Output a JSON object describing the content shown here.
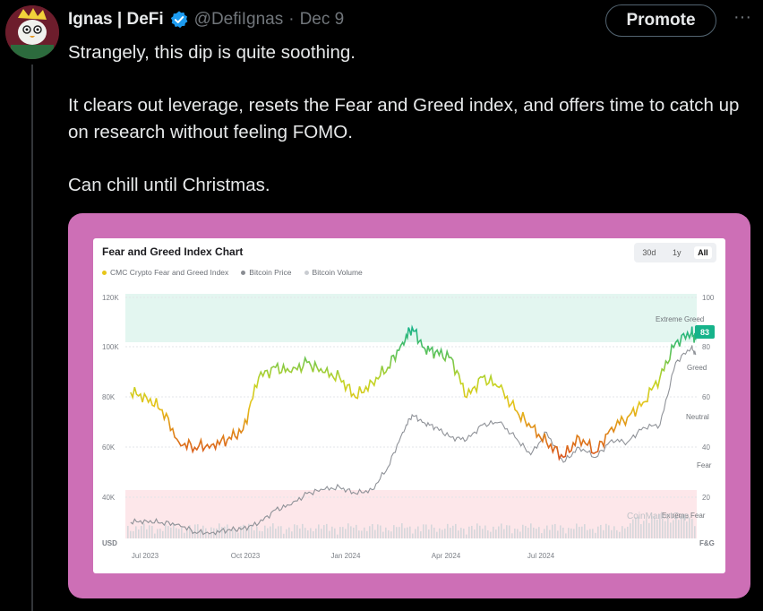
{
  "tweet": {
    "author_name": "Ignas | DeFi",
    "handle": "@DefiIgnas",
    "separator": "·",
    "date": "Dec 9",
    "promote_label": "Promote",
    "more_label": "···",
    "paragraphs": [
      "Strangely, this dip is quite soothing.",
      "It clears out leverage, resets the Fear and Greed index, and offers time to catch up on research without feeling FOMO.",
      "Can chill until Christmas."
    ]
  },
  "colors": {
    "background": "#000000",
    "text": "#e7e9ea",
    "muted": "#71767b",
    "verified": "#1d9bf0",
    "media_frame": "#cd6fb6"
  },
  "icons": {
    "avatar": "avatar-icon",
    "verified": "verified-badge-icon",
    "more": "more-icon"
  },
  "chart_card": {
    "title": "Fear and Greed Index Chart",
    "ranges": [
      "30d",
      "1y",
      "All"
    ],
    "active_range": "All",
    "legend": [
      {
        "label": "CMC Crypto Fear and Greed Index",
        "color": "#e7c619"
      },
      {
        "label": "Bitcoin Price",
        "color": "#8a8d93"
      },
      {
        "label": "Bitcoin Volume",
        "color": "#c9ccd1"
      }
    ],
    "watermark": "CoinMarketCap"
  },
  "chart_data": {
    "type": "line",
    "title": "Fear and Greed Index Chart",
    "x_ticks": [
      "Jul 2023",
      "Oct 2023",
      "Jan 2024",
      "Apr 2024",
      "Jul 2024"
    ],
    "left_axis": {
      "label": "USD",
      "ticks": [
        "120K",
        "100K",
        "80K",
        "60K",
        "40K"
      ],
      "range": [
        30000,
        120000
      ]
    },
    "right_axis": {
      "label": "F&G",
      "ticks": [
        "100",
        "80",
        "60",
        "40",
        "20"
      ],
      "range": [
        0,
        100
      ]
    },
    "zones": [
      "Extreme Greed",
      "Greed",
      "Neutral",
      "Fear",
      "Extreme Fear"
    ],
    "current_value": "83",
    "series": [
      {
        "name": "CMC Crypto Fear and Greed Index",
        "x": [
          "2023-06-20",
          "2023-07-05",
          "2023-07-20",
          "2023-08-05",
          "2023-08-20",
          "2023-09-05",
          "2023-09-20",
          "2023-10-05",
          "2023-10-20",
          "2023-11-05",
          "2023-11-20",
          "2023-12-05",
          "2023-12-20",
          "2024-01-05",
          "2024-01-20",
          "2024-02-05",
          "2024-02-20",
          "2024-03-05",
          "2024-03-14",
          "2024-03-25",
          "2024-04-05",
          "2024-04-20",
          "2024-05-05",
          "2024-05-20",
          "2024-06-05",
          "2024-06-20",
          "2024-07-05",
          "2024-07-20",
          "2024-08-05",
          "2024-08-20",
          "2024-09-05",
          "2024-09-20",
          "2024-10-05",
          "2024-10-20",
          "2024-11-05",
          "2024-11-20",
          "2024-12-05",
          "2024-12-09"
        ],
        "y": [
          62,
          60,
          55,
          42,
          40,
          41,
          43,
          47,
          68,
          72,
          70,
          74,
          70,
          68,
          60,
          66,
          72,
          82,
          88,
          80,
          78,
          76,
          60,
          68,
          64,
          55,
          48,
          42,
          36,
          44,
          38,
          48,
          52,
          58,
          68,
          82,
          86,
          83
        ]
      },
      {
        "name": "Bitcoin Price",
        "x": [
          "2023-06-20",
          "2023-07-05",
          "2023-07-20",
          "2023-08-05",
          "2023-08-20",
          "2023-09-05",
          "2023-09-20",
          "2023-10-05",
          "2023-10-20",
          "2023-11-05",
          "2023-11-20",
          "2023-12-05",
          "2023-12-20",
          "2024-01-05",
          "2024-01-20",
          "2024-02-05",
          "2024-02-20",
          "2024-03-05",
          "2024-03-14",
          "2024-03-25",
          "2024-04-05",
          "2024-04-20",
          "2024-05-05",
          "2024-05-20",
          "2024-06-05",
          "2024-06-20",
          "2024-07-05",
          "2024-07-20",
          "2024-08-05",
          "2024-08-20",
          "2024-09-05",
          "2024-09-20",
          "2024-10-05",
          "2024-10-20",
          "2024-11-05",
          "2024-11-20",
          "2024-12-05",
          "2024-12-09"
        ],
        "y": [
          30000,
          30500,
          29800,
          29200,
          26000,
          25800,
          26800,
          27500,
          29500,
          35000,
          37000,
          41500,
          43000,
          44000,
          41500,
          43000,
          52000,
          66000,
          73000,
          70000,
          68000,
          64000,
          63000,
          69000,
          70000,
          64000,
          57000,
          66000,
          54000,
          60000,
          56000,
          63000,
          62000,
          68000,
          69000,
          94000,
          100000,
          97000
        ]
      }
    ]
  }
}
